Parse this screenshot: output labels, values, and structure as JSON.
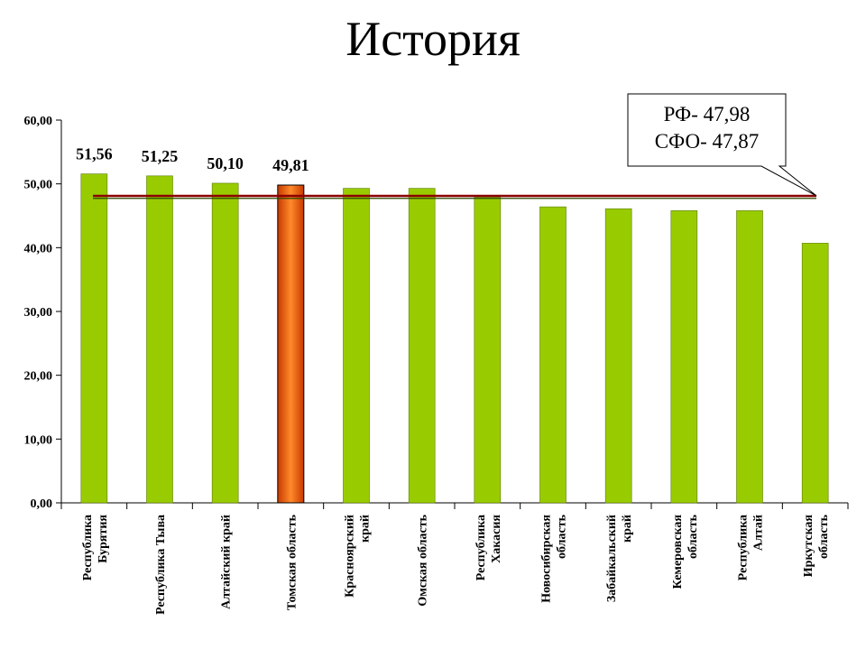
{
  "page": {
    "title": "История"
  },
  "chart_data": {
    "type": "bar",
    "title": "История",
    "categories": [
      [
        "Республика",
        "Бурятия"
      ],
      [
        "Республика Тыва"
      ],
      [
        "Алтайский край"
      ],
      [
        "Томская область"
      ],
      [
        "Красноярский",
        "край"
      ],
      [
        "Омская область"
      ],
      [
        "Республика",
        "Хакасия"
      ],
      [
        "Новосибирская",
        "область"
      ],
      [
        "Забайкальский",
        "край"
      ],
      [
        "Кемеровская",
        "область"
      ],
      [
        "Республика",
        "Алтай"
      ],
      [
        "Иркутская",
        "область"
      ]
    ],
    "values": [
      51.56,
      51.25,
      50.1,
      49.81,
      49.3,
      49.3,
      47.9,
      46.4,
      46.1,
      45.8,
      45.8,
      40.7
    ],
    "data_labels": [
      "51,56",
      "51,25",
      "50,10",
      "49,81",
      "",
      "",
      "",
      "",
      "",
      "",
      "",
      ""
    ],
    "highlight_index": 3,
    "ylim": [
      0,
      60
    ],
    "yticks": [
      "0,00",
      "10,00",
      "20,00",
      "30,00",
      "40,00",
      "50,00",
      "60,00"
    ],
    "reference_lines": [
      {
        "label": "РФ- 47,98",
        "value": 47.98
      },
      {
        "label": "СФО- 47,87",
        "value": 47.87
      }
    ],
    "colors": {
      "bar": "#99cc00",
      "bar_stroke": "#5a7a00",
      "highlight_light": "#ff8a2a",
      "highlight_dark": "#c83a00",
      "line_rf": "#8b0000",
      "line_sfo": "#2a4a00"
    },
    "grid": false
  }
}
